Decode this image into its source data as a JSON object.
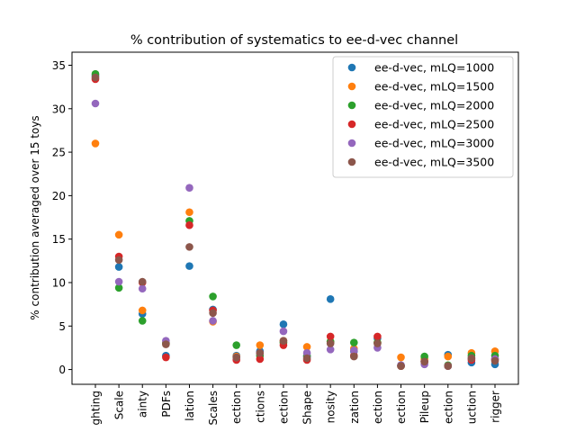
{
  "chart_data": {
    "type": "scatter",
    "title": "% contribution of systematics to ee-d-vec channel",
    "xlabel": "",
    "ylabel": "% contribution averaged over 15 toys",
    "ylim": [
      -1.7,
      36.5
    ],
    "yticks": [
      0,
      5,
      10,
      15,
      20,
      25,
      30,
      35
    ],
    "grid": false,
    "legend_position": "top-right",
    "categories": [
      "ghting",
      "Scale",
      "ainty",
      "PDFs",
      "lation",
      "Scales",
      "ection",
      "ctions",
      "ection",
      "Shape",
      "nosity",
      "zation",
      "ection",
      "ection",
      "Pileup",
      "ection",
      "uction",
      "rigger"
    ],
    "series": [
      {
        "name": "ee-d-vec, mLQ=1000",
        "color": "#1f77b4",
        "values": [
          33.8,
          11.8,
          6.4,
          1.6,
          11.9,
          6.9,
          1.6,
          2.1,
          5.2,
          1.5,
          8.1,
          2.1,
          3.6,
          0.5,
          0.9,
          1.7,
          0.8,
          0.6
        ]
      },
      {
        "name": "ee-d-vec, mLQ=1500",
        "color": "#ff7f0e",
        "values": [
          26.0,
          15.5,
          6.8,
          3.1,
          18.1,
          5.5,
          1.5,
          2.8,
          3.3,
          2.6,
          3.2,
          2.4,
          3.1,
          1.4,
          1.2,
          1.5,
          1.9,
          2.1
        ]
      },
      {
        "name": "ee-d-vec, mLQ=2000",
        "color": "#2ca02c",
        "values": [
          34.0,
          9.4,
          5.6,
          3.0,
          17.1,
          8.4,
          2.8,
          1.6,
          3.1,
          1.6,
          3.2,
          3.1,
          3.1,
          0.4,
          1.5,
          0.5,
          1.6,
          1.6
        ]
      },
      {
        "name": "ee-d-vec, mLQ=2500",
        "color": "#d62728",
        "values": [
          33.4,
          13.0,
          10.0,
          1.4,
          16.6,
          6.8,
          1.1,
          1.2,
          2.8,
          1.1,
          3.8,
          1.6,
          3.8,
          0.4,
          0.9,
          0.4,
          1.1,
          1.2
        ]
      },
      {
        "name": "ee-d-vec, mLQ=3000",
        "color": "#9467bd",
        "values": [
          30.6,
          10.1,
          9.3,
          3.3,
          20.9,
          5.6,
          1.4,
          1.9,
          4.4,
          1.9,
          2.3,
          2.2,
          2.5,
          0.5,
          0.6,
          0.4,
          1.3,
          1.2
        ]
      },
      {
        "name": "ee-d-vec, mLQ=3500",
        "color": "#8c564b",
        "values": [
          33.6,
          12.6,
          10.1,
          2.9,
          14.1,
          6.5,
          1.4,
          1.9,
          3.3,
          1.3,
          3.0,
          1.5,
          3.0,
          0.4,
          0.9,
          0.4,
          1.3,
          1.0
        ]
      }
    ]
  }
}
